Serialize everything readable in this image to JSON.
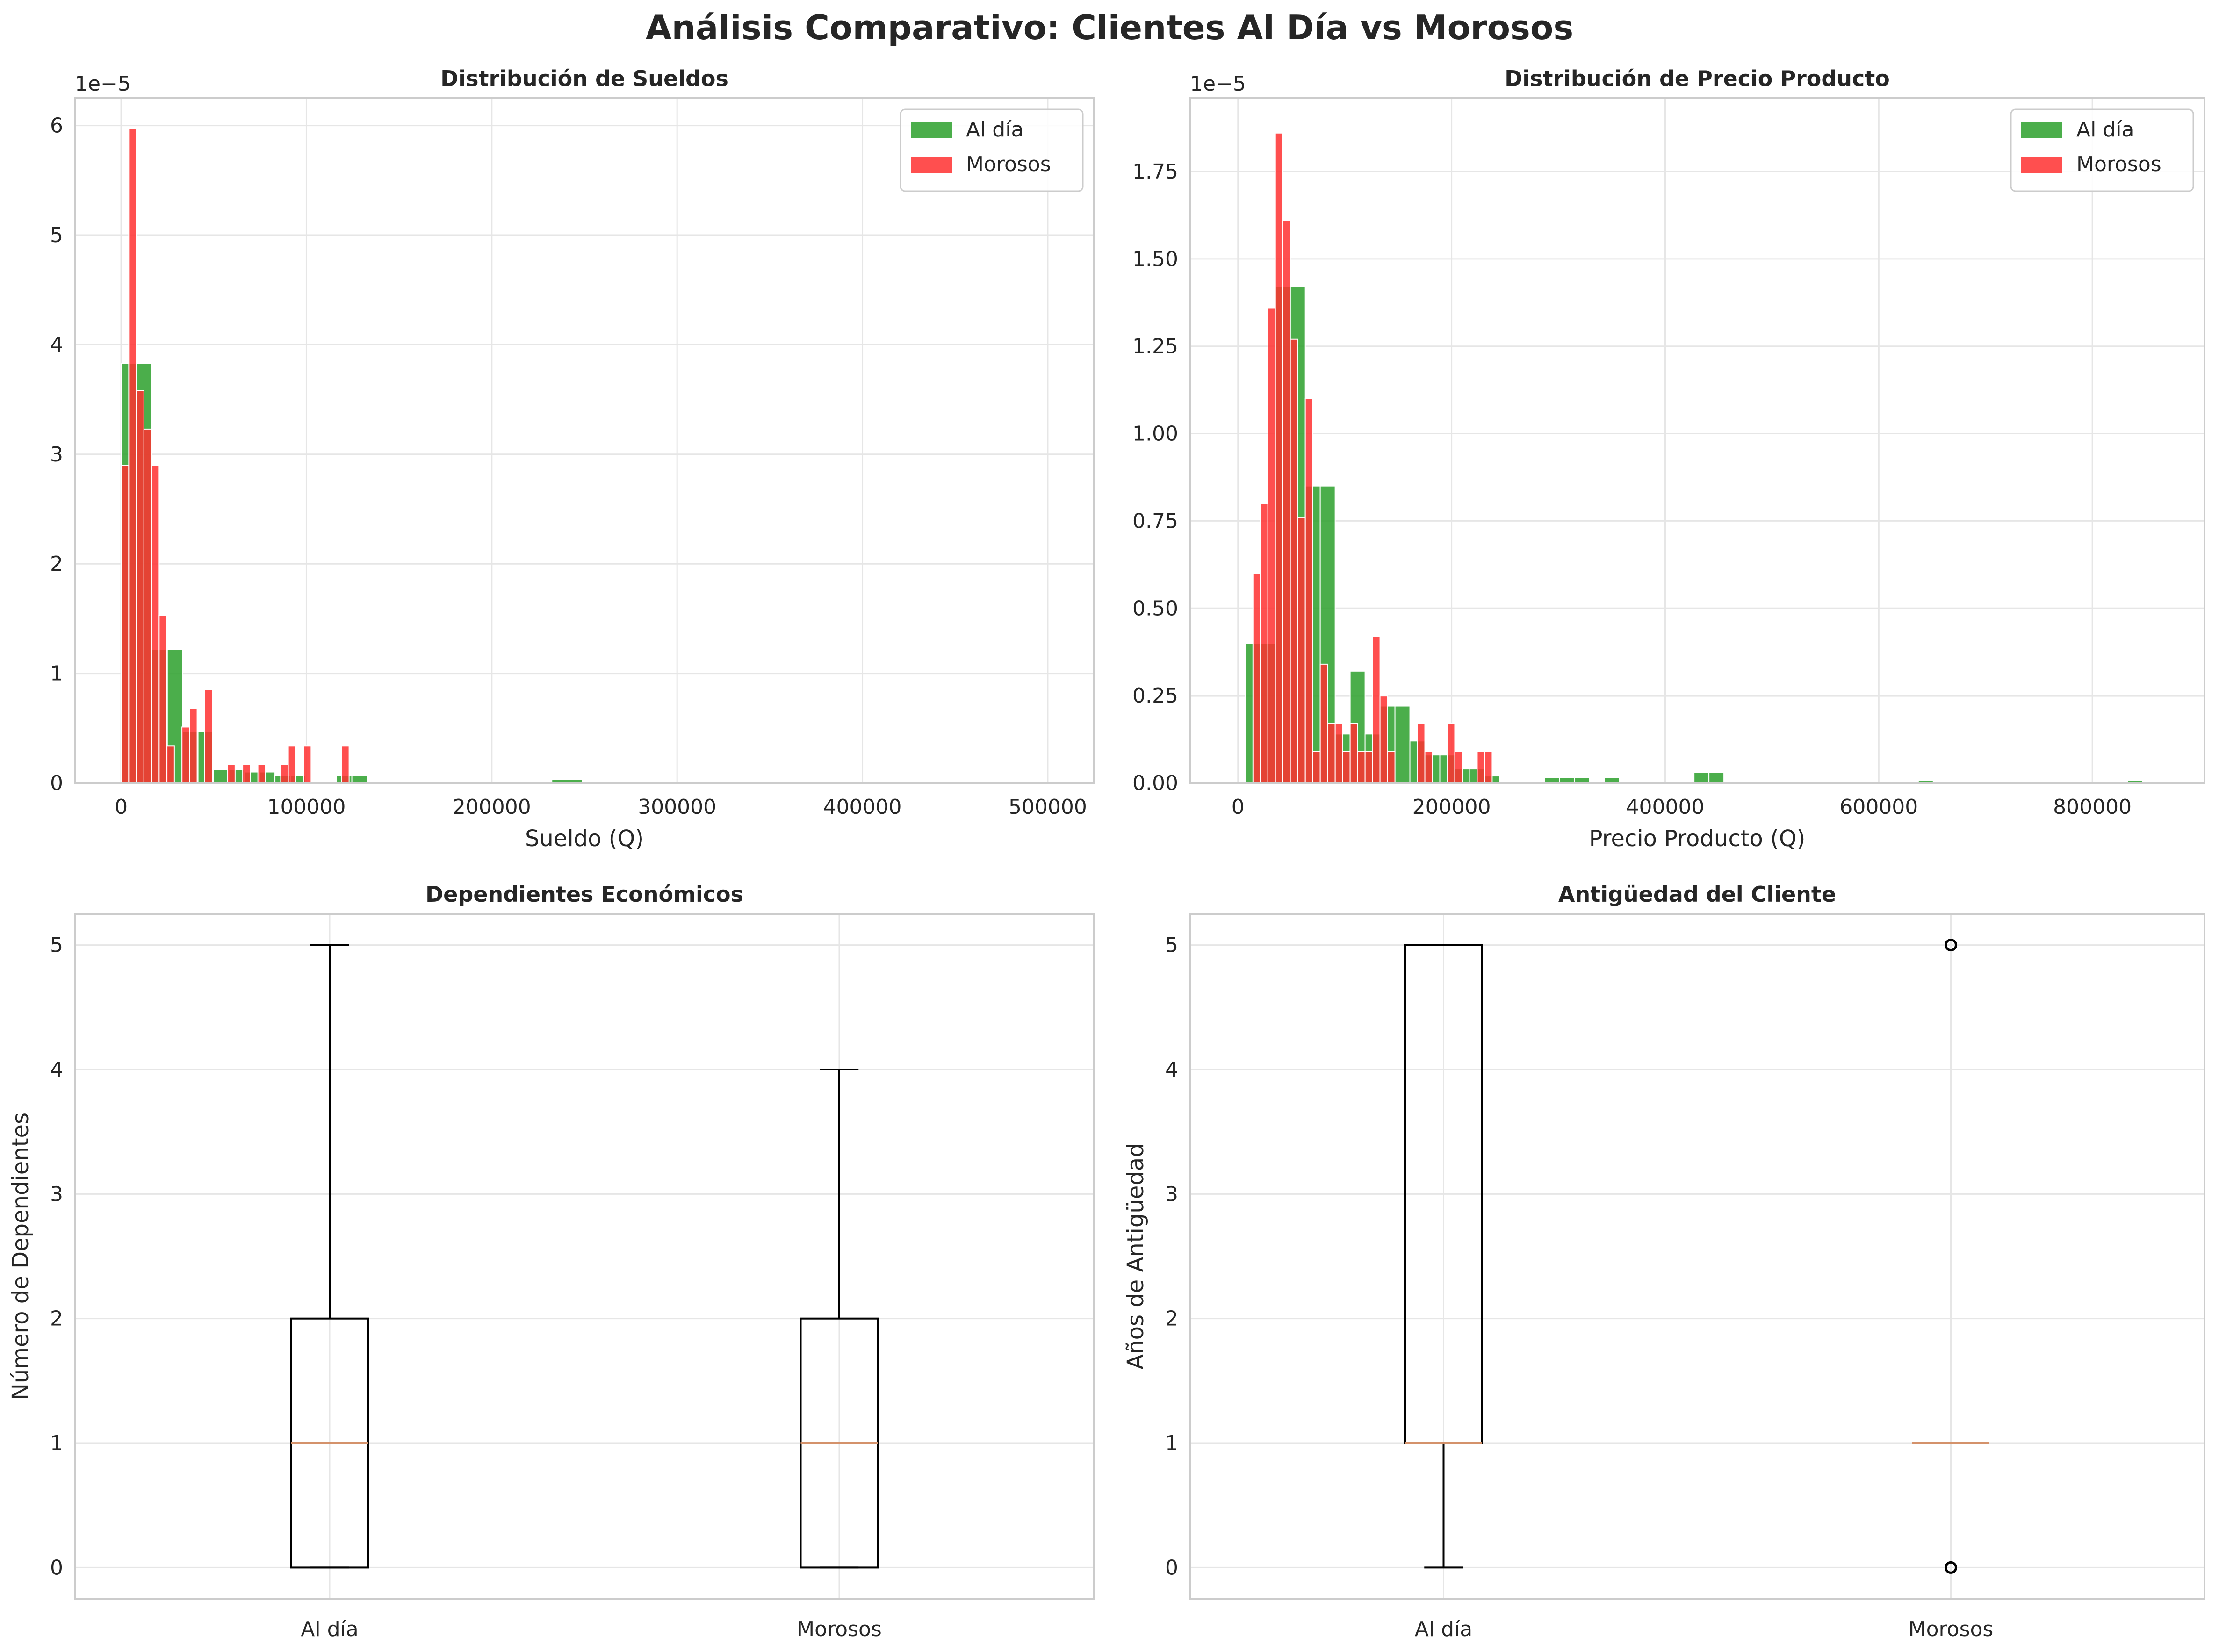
{
  "figure": {
    "title": "Análisis Comparativo: Clientes Al Día vs Morosos"
  },
  "colors": {
    "al_dia": "#2ca02c",
    "morosos": "#ff3030",
    "grid": "#e6e6e6",
    "spine": "#cccccc",
    "median": "#d4926b"
  },
  "chart_data": [
    {
      "type": "histogram",
      "title": "Distribución de Sueldos",
      "xlabel": "Sueldo (Q)",
      "ylabel": "",
      "offset_text": "1e−5",
      "scale": 1e-05,
      "xlim": [
        -25000,
        525000
      ],
      "ylim": [
        0,
        6.25
      ],
      "xticks": [
        0,
        100000,
        200000,
        300000,
        400000,
        500000
      ],
      "xtick_labels": [
        "0",
        "100000",
        "200000",
        "300000",
        "400000",
        "500000"
      ],
      "yticks": [
        0,
        1,
        2,
        3,
        4,
        5,
        6
      ],
      "ytick_labels": [
        "0",
        "1",
        "2",
        "3",
        "4",
        "5",
        "6"
      ],
      "legend": {
        "location": "top-right",
        "entries": [
          "Al día",
          "Morosos"
        ]
      },
      "series": [
        {
          "name": "Al día",
          "color": "#2ca02c",
          "bins": [
            [
              0,
              8300,
              3.83
            ],
            [
              8300,
              16600,
              3.83
            ],
            [
              16600,
              24900,
              1.22
            ],
            [
              24900,
              33200,
              1.22
            ],
            [
              33200,
              41500,
              0.47
            ],
            [
              41500,
              49800,
              0.47
            ],
            [
              49800,
              58100,
              0.12
            ],
            [
              58100,
              66400,
              0.12
            ],
            [
              66400,
              74700,
              0.1
            ],
            [
              74700,
              83000,
              0.1
            ],
            [
              83000,
              91300,
              0.07
            ],
            [
              91300,
              99600,
              0.07
            ],
            [
              116200,
              124500,
              0.07
            ],
            [
              124500,
              132800,
              0.07
            ],
            [
              232400,
              248900,
              0.03
            ],
            [
              282200,
              290500,
              0.01
            ]
          ]
        },
        {
          "name": "Morosos",
          "color": "#ff3030",
          "bins": [
            [
              0,
              4100,
              2.9
            ],
            [
              4100,
              8200,
              5.97
            ],
            [
              8200,
              12300,
              3.58
            ],
            [
              12300,
              16400,
              3.23
            ],
            [
              16400,
              20500,
              2.9
            ],
            [
              20500,
              24600,
              1.53
            ],
            [
              24600,
              28700,
              0.34
            ],
            [
              28700,
              32800,
              0.0
            ],
            [
              32800,
              36900,
              0.51
            ],
            [
              36900,
              41000,
              0.68
            ],
            [
              41000,
              45100,
              0.0
            ],
            [
              45100,
              49200,
              0.85
            ],
            [
              57400,
              61500,
              0.17
            ],
            [
              65600,
              69700,
              0.17
            ],
            [
              73800,
              77900,
              0.17
            ],
            [
              86100,
              90200,
              0.17
            ],
            [
              90200,
              94300,
              0.34
            ],
            [
              98400,
              102500,
              0.34
            ],
            [
              118900,
              123000,
              0.34
            ]
          ]
        }
      ]
    },
    {
      "type": "histogram",
      "title": "Distribución de Precio Producto",
      "xlabel": "Precio Producto (Q)",
      "ylabel": "",
      "offset_text": "1e−5",
      "scale": 1e-05,
      "xlim": [
        -45000,
        905000
      ],
      "ylim": [
        0,
        1.96
      ],
      "xticks": [
        0,
        200000,
        400000,
        600000,
        800000
      ],
      "xtick_labels": [
        "0",
        "200000",
        "400000",
        "600000",
        "800000"
      ],
      "yticks": [
        0,
        0.25,
        0.5,
        0.75,
        1.0,
        1.25,
        1.5,
        1.75
      ],
      "ytick_labels": [
        "0.00",
        "0.25",
        "0.50",
        "0.75",
        "1.00",
        "1.25",
        "1.50",
        "1.75"
      ],
      "legend": {
        "location": "top-right",
        "entries": [
          "Al día",
          "Morosos"
        ]
      },
      "series": [
        {
          "name": "Al día",
          "color": "#2ca02c",
          "bins": [
            [
              0,
              14200,
              0.0
            ],
            [
              7000,
              21000,
              0.4
            ],
            [
              21000,
              35000,
              0.4
            ],
            [
              35000,
              49000,
              1.42
            ],
            [
              49000,
              63000,
              1.42
            ],
            [
              63000,
              77000,
              0.85
            ],
            [
              77000,
              91000,
              0.85
            ],
            [
              91000,
              105000,
              0.14
            ],
            [
              105000,
              119000,
              0.32
            ],
            [
              119000,
              133000,
              0.14
            ],
            [
              133000,
              147000,
              0.22
            ],
            [
              147000,
              161000,
              0.22
            ],
            [
              161000,
              175000,
              0.12
            ],
            [
              175000,
              189000,
              0.08
            ],
            [
              189000,
              203000,
              0.08
            ],
            [
              203000,
              217000,
              0.04
            ],
            [
              217000,
              231000,
              0.04
            ],
            [
              231000,
              245000,
              0.02
            ],
            [
              287000,
              301000,
              0.015
            ],
            [
              301000,
              315000,
              0.015
            ],
            [
              315000,
              329000,
              0.015
            ],
            [
              343000,
              357000,
              0.015
            ],
            [
              427000,
              441000,
              0.03
            ],
            [
              441000,
              455000,
              0.03
            ],
            [
              637000,
              651000,
              0.008
            ],
            [
              833000,
              847000,
              0.008
            ]
          ]
        },
        {
          "name": "Morosos",
          "color": "#ff3030",
          "bins": [
            [
              14000,
              21000,
              0.6
            ],
            [
              21000,
              28000,
              0.8
            ],
            [
              28000,
              35000,
              1.36
            ],
            [
              35000,
              42000,
              1.86
            ],
            [
              42000,
              49000,
              1.61
            ],
            [
              49000,
              56000,
              1.27
            ],
            [
              56000,
              63000,
              0.76
            ],
            [
              63000,
              70000,
              1.1
            ],
            [
              70000,
              77000,
              0.09
            ],
            [
              77000,
              84000,
              0.34
            ],
            [
              84000,
              91000,
              0.17
            ],
            [
              91000,
              98000,
              0.17
            ],
            [
              98000,
              105000,
              0.09
            ],
            [
              105000,
              112000,
              0.17
            ],
            [
              112000,
              119000,
              0.09
            ],
            [
              119000,
              126000,
              0.09
            ],
            [
              126000,
              133000,
              0.42
            ],
            [
              133000,
              140000,
              0.25
            ],
            [
              140000,
              147000,
              0.09
            ],
            [
              154000,
              161000,
              0.0
            ],
            [
              168000,
              175000,
              0.17
            ],
            [
              175000,
              182000,
              0.09
            ],
            [
              196000,
              203000,
              0.17
            ],
            [
              203000,
              210000,
              0.09
            ],
            [
              224000,
              231000,
              0.09
            ],
            [
              231000,
              238000,
              0.09
            ],
            [
              252000,
              259000,
              0.0
            ]
          ]
        }
      ]
    },
    {
      "type": "boxplot",
      "title": "Dependientes Económicos",
      "xlabel": "",
      "ylabel": "Número de Dependientes",
      "ylim": [
        -0.25,
        5.25
      ],
      "yticks": [
        0,
        1,
        2,
        3,
        4,
        5
      ],
      "ytick_labels": [
        "0",
        "1",
        "2",
        "3",
        "4",
        "5"
      ],
      "categories": [
        "Al día",
        "Morosos"
      ],
      "boxes": [
        {
          "name": "Al día",
          "whisker_low": 0,
          "q1": 0,
          "median": 1,
          "q3": 2,
          "whisker_high": 5,
          "fliers": []
        },
        {
          "name": "Morosos",
          "whisker_low": 0,
          "q1": 0,
          "median": 1,
          "q3": 2,
          "whisker_high": 4,
          "fliers": []
        }
      ]
    },
    {
      "type": "boxplot",
      "title": "Antigüedad del Cliente",
      "xlabel": "",
      "ylabel": "Años de Antigüedad",
      "ylim": [
        -0.25,
        5.25
      ],
      "yticks": [
        0,
        1,
        2,
        3,
        4,
        5
      ],
      "ytick_labels": [
        "0",
        "1",
        "2",
        "3",
        "4",
        "5"
      ],
      "categories": [
        "Al día",
        "Morosos"
      ],
      "boxes": [
        {
          "name": "Al día",
          "whisker_low": 0,
          "q1": 1,
          "median": 1,
          "q3": 5,
          "whisker_high": 5,
          "fliers": []
        },
        {
          "name": "Morosos",
          "whisker_low": 1,
          "q1": 1,
          "median": 1,
          "q3": 1,
          "whisker_high": 1,
          "fliers": [
            0,
            5
          ]
        }
      ]
    }
  ]
}
